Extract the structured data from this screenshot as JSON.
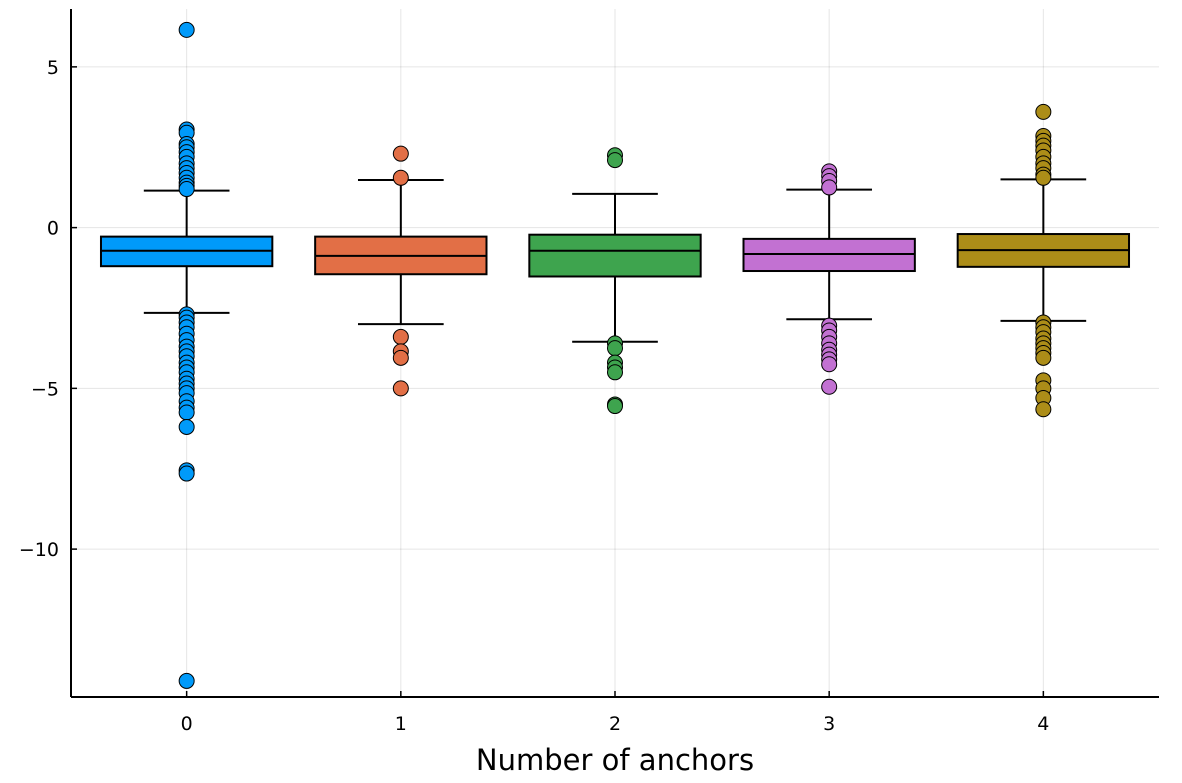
{
  "chart_data": {
    "type": "box",
    "title": "",
    "xlabel": "Number of anchors",
    "ylabel": "",
    "categories": [
      "0",
      "1",
      "2",
      "3",
      "4"
    ],
    "xlim": [
      -0.54,
      4.54
    ],
    "ylim": [
      -14.6,
      6.8
    ],
    "yticks": [
      5,
      0,
      -5,
      -10
    ],
    "ytick_labels": [
      "5",
      "0",
      "−5",
      "−10"
    ],
    "grid": true,
    "legend": "none",
    "series": [
      {
        "category": "0",
        "color": "#009AFA",
        "whisker_low": -2.65,
        "q1": -1.2,
        "median": -0.72,
        "q3": -0.28,
        "whisker_high": 1.15,
        "outliers": [
          6.15,
          3.05,
          2.95,
          2.6,
          2.5,
          2.35,
          2.2,
          2.0,
          1.85,
          1.7,
          1.55,
          1.4,
          1.3,
          1.2,
          -2.7,
          -2.8,
          -2.95,
          -3.1,
          -3.3,
          -3.5,
          -3.7,
          -3.85,
          -4.0,
          -4.2,
          -4.35,
          -4.5,
          -4.7,
          -4.85,
          -5.0,
          -5.15,
          -5.4,
          -5.6,
          -5.75,
          -6.2,
          -7.55,
          -7.65,
          -14.1
        ]
      },
      {
        "category": "1",
        "color": "#E26F46",
        "whisker_low": -3.0,
        "q1": -1.45,
        "median": -0.88,
        "q3": -0.28,
        "whisker_high": 1.48,
        "outliers": [
          2.3,
          1.55,
          -3.4,
          -3.85,
          -4.05,
          -5.0
        ]
      },
      {
        "category": "2",
        "color": "#3EA44E",
        "whisker_low": -3.55,
        "q1": -1.52,
        "median": -0.72,
        "q3": -0.22,
        "whisker_high": 1.05,
        "outliers": [
          2.25,
          2.1,
          -3.6,
          -3.75,
          -4.2,
          -4.35,
          -4.5,
          -5.5,
          -5.55
        ]
      },
      {
        "category": "3",
        "color": "#C271D2",
        "whisker_low": -2.85,
        "q1": -1.35,
        "median": -0.82,
        "q3": -0.35,
        "whisker_high": 1.18,
        "outliers": [
          1.75,
          1.6,
          1.45,
          1.25,
          -3.05,
          -3.2,
          -3.4,
          -3.6,
          -3.8,
          -3.95,
          -4.1,
          -4.25,
          -4.95
        ]
      },
      {
        "category": "4",
        "color": "#AC8D18",
        "whisker_low": -2.9,
        "q1": -1.22,
        "median": -0.7,
        "q3": -0.2,
        "whisker_high": 1.5,
        "outliers": [
          3.6,
          2.85,
          2.7,
          2.55,
          2.4,
          2.2,
          2.0,
          1.85,
          1.65,
          1.55,
          -2.95,
          -3.1,
          -3.25,
          -3.45,
          -3.6,
          -3.75,
          -3.9,
          -4.05,
          -4.75,
          -5.0,
          -5.3,
          -5.65
        ]
      }
    ]
  }
}
